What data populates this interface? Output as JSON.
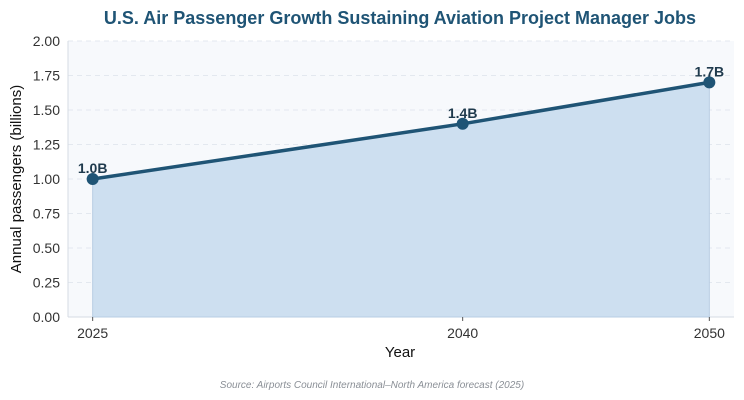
{
  "chart_data": {
    "type": "area",
    "title": "U.S. Air Passenger Growth Sustaining Aviation Project Manager Jobs",
    "xlabel": "Year",
    "ylabel": "Annual passengers (billions)",
    "x": [
      2025,
      2040,
      2050
    ],
    "values": [
      1.0,
      1.4,
      1.7
    ],
    "data_labels": [
      "1.0B",
      "1.4B",
      "1.7B"
    ],
    "xlim": [
      2024,
      2051
    ],
    "ylim": [
      0,
      2
    ],
    "x_ticks": [
      "2025",
      "2040",
      "2050"
    ],
    "y_ticks": [
      "0.00",
      "0.25",
      "0.50",
      "0.75",
      "1.00",
      "1.25",
      "1.50",
      "1.75",
      "2.00"
    ],
    "grid": true,
    "legend": "none",
    "source": "Source: Airports Council International–North America forecast (2025)"
  },
  "colors": {
    "line": "#1f5475",
    "fill": "#cddff0",
    "plot_bg": "#f7f9fc",
    "title": "#1f5475",
    "label": "#1f3a4d",
    "grid": "#e3e8ef"
  }
}
